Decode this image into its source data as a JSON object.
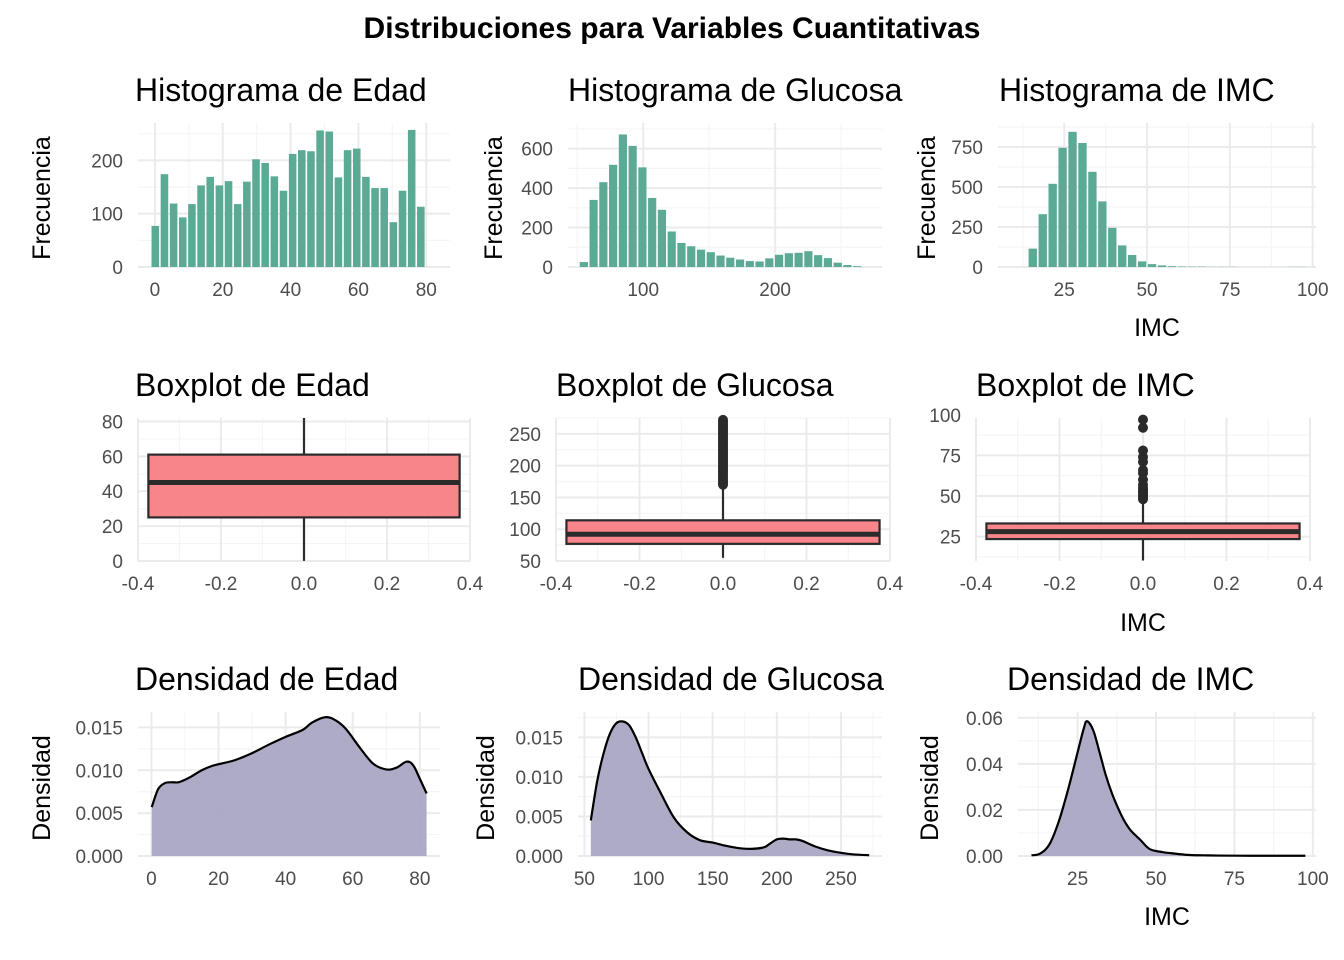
{
  "title": "Distribuciones para Variables Cuantitativas",
  "colors": {
    "histogram_fill": "#5AAA95",
    "box_fill": "#F8858A",
    "box_stroke": "#2B2B2B",
    "density_fill": "#A9A7C3",
    "density_line": "#000000",
    "grid_major": "#EBEBEB",
    "grid_minor": "#F5F5F5",
    "tick_text": "#4D4D4D"
  },
  "chart_data": [
    {
      "type": "bar",
      "title": "Histograma de Edad",
      "xlabel": "",
      "ylabel": "Frecuencia",
      "xlim": [
        -5,
        87
      ],
      "ylim": [
        0,
        270
      ],
      "xticks": [
        0,
        20,
        40,
        60,
        80
      ],
      "yticks": [
        0,
        100,
        200
      ],
      "bin_width": 2.7,
      "centers": [
        0.1,
        2.8,
        5.5,
        8.2,
        10.9,
        13.6,
        16.3,
        19.0,
        21.7,
        24.4,
        27.1,
        29.8,
        32.5,
        35.2,
        37.9,
        40.6,
        43.3,
        46.0,
        48.7,
        51.4,
        54.1,
        56.8,
        59.5,
        62.2,
        64.9,
        67.6,
        70.3,
        73.0,
        75.7,
        78.4,
        81.1
      ],
      "values": [
        77,
        174,
        119,
        93,
        118,
        153,
        169,
        153,
        161,
        118,
        160,
        202,
        195,
        170,
        143,
        212,
        219,
        217,
        256,
        254,
        168,
        219,
        222,
        169,
        148,
        148,
        84,
        143,
        257,
        113,
        0
      ]
    },
    {
      "type": "bar",
      "title": "Histograma de Glucosa",
      "xlabel": "",
      "ylabel": "Frecuencia",
      "xlim": [
        43,
        281
      ],
      "ylim": [
        0,
        730
      ],
      "xticks": [
        100,
        200
      ],
      "yticks": [
        0,
        200,
        400,
        600
      ],
      "bin_width": 7.4,
      "centers": [
        55,
        62.4,
        69.8,
        77.2,
        84.6,
        92,
        99.4,
        106.8,
        114.2,
        121.6,
        129,
        136.4,
        143.8,
        151.2,
        158.6,
        166,
        173.4,
        180.8,
        188.2,
        195.6,
        203,
        210.4,
        217.8,
        225.2,
        232.6,
        240,
        247.4,
        254.8,
        262.2
      ],
      "values": [
        25,
        340,
        430,
        518,
        672,
        614,
        505,
        350,
        290,
        180,
        122,
        105,
        88,
        75,
        58,
        47,
        38,
        30,
        28,
        44,
        62,
        70,
        72,
        80,
        60,
        45,
        22,
        10,
        4
      ]
    },
    {
      "type": "bar",
      "title": "Histograma de IMC",
      "xlabel": "IMC",
      "ylabel": "Frecuencia",
      "xlim": [
        5,
        101
      ],
      "ylim": [
        0,
        900
      ],
      "xticks": [
        25,
        50,
        75,
        100
      ],
      "yticks": [
        0,
        250,
        500,
        750
      ],
      "bin_width": 3.0,
      "centers": [
        15.5,
        18.5,
        21.5,
        24.5,
        27.5,
        30.5,
        33.5,
        36.5,
        39.5,
        42.5,
        45.5,
        48.5,
        51.5,
        54.5,
        57.5,
        60.5,
        63.5,
        66.5,
        69.5,
        72.5,
        75.5,
        78.5,
        81.5,
        84.5,
        87.5,
        90.5,
        93.5,
        96.5
      ],
      "values": [
        115,
        330,
        520,
        745,
        845,
        775,
        595,
        410,
        245,
        135,
        75,
        35,
        18,
        10,
        5,
        3,
        2,
        2,
        1,
        1,
        1,
        0,
        0,
        0,
        0,
        0,
        1,
        1
      ]
    },
    {
      "type": "boxplot",
      "title": "Boxplot de Edad",
      "xlabel": "",
      "ylabel": "",
      "xlim": [
        -0.4,
        0.4
      ],
      "ylim": [
        0,
        82
      ],
      "xticks": [
        -0.4,
        -0.2,
        0.0,
        0.2,
        0.4
      ],
      "xtick_labels": [
        "-0.4",
        "-0.2",
        "0.0",
        "0.2",
        "0.4"
      ],
      "yticks": [
        0,
        20,
        40,
        60,
        80
      ],
      "box": {
        "xmin": -0.375,
        "xmax": 0.375,
        "lower_whisker": 0.08,
        "q1": 25,
        "median": 45,
        "q3": 61,
        "upper_whisker": 82
      },
      "outliers": []
    },
    {
      "type": "boxplot",
      "title": "Boxplot de Glucosa",
      "xlabel": "",
      "ylabel": "",
      "xlim": [
        -0.4,
        0.4
      ],
      "ylim": [
        50,
        275
      ],
      "xticks": [
        -0.4,
        -0.2,
        0.0,
        0.2,
        0.4
      ],
      "xtick_labels": [
        "-0.4",
        "-0.2",
        "0.0",
        "0.2",
        "0.4"
      ],
      "yticks": [
        50,
        100,
        150,
        200,
        250
      ],
      "box": {
        "xmin": -0.375,
        "xmax": 0.375,
        "lower_whisker": 55,
        "q1": 77,
        "median": 92,
        "q3": 114,
        "upper_whisker": 169
      },
      "outliers": [
        170,
        173,
        176,
        179,
        182,
        185,
        188,
        191,
        194,
        197,
        200,
        203,
        206,
        209,
        212,
        215,
        218,
        221,
        224,
        227,
        230,
        233,
        236,
        239,
        242,
        245,
        248,
        251,
        254,
        257,
        260,
        263,
        266,
        269,
        272
      ]
    },
    {
      "type": "boxplot",
      "title": "Boxplot de IMC",
      "xlabel": "IMC",
      "ylabel": "",
      "xlim": [
        -0.4,
        0.4
      ],
      "ylim": [
        10,
        98
      ],
      "xticks": [
        -0.4,
        -0.2,
        0.0,
        0.2,
        0.4
      ],
      "xtick_labels": [
        "-0.4",
        "-0.2",
        "0.0",
        "0.2",
        "0.4"
      ],
      "yticks": [
        25,
        50,
        75,
        100
      ],
      "box": {
        "xmin": -0.375,
        "xmax": 0.375,
        "lower_whisker": 10.3,
        "q1": 23.5,
        "median": 28.1,
        "q3": 33.1,
        "upper_whisker": 47.5
      },
      "outliers": [
        48,
        49,
        50,
        51,
        52,
        53,
        54,
        55,
        57,
        60,
        64,
        66,
        71,
        74,
        78,
        92,
        97
      ]
    },
    {
      "type": "area",
      "title": "Densidad de Edad",
      "xlabel": "",
      "ylabel": "Densidad",
      "xlim": [
        -4,
        86
      ],
      "ylim": [
        0,
        0.0168
      ],
      "xticks": [
        0,
        20,
        40,
        60,
        80
      ],
      "yticks": [
        0,
        0.005,
        0.01,
        0.015
      ],
      "ytick_labels": [
        "0.000",
        "0.005",
        "0.010",
        "0.015"
      ],
      "x": [
        0.1,
        2,
        4,
        6,
        8,
        10,
        12,
        15,
        18,
        21,
        25,
        30,
        35,
        40,
        45,
        48,
        52,
        55,
        58,
        62,
        66,
        70,
        73,
        76,
        78,
        80,
        82
      ],
      "y": [
        0.0057,
        0.0078,
        0.0085,
        0.0086,
        0.0086,
        0.0089,
        0.0093,
        0.01,
        0.0105,
        0.0108,
        0.0112,
        0.012,
        0.013,
        0.0139,
        0.0147,
        0.0156,
        0.0162,
        0.0158,
        0.0148,
        0.0127,
        0.0108,
        0.0101,
        0.0103,
        0.011,
        0.0106,
        0.009,
        0.0073
      ]
    },
    {
      "type": "area",
      "title": "Densidad de Glucosa",
      "xlabel": "",
      "ylabel": "Densidad",
      "xlim": [
        45,
        282
      ],
      "ylim": [
        0,
        0.0182
      ],
      "xticks": [
        50,
        100,
        150,
        200,
        250
      ],
      "yticks": [
        0,
        0.005,
        0.01,
        0.015
      ],
      "ytick_labels": [
        "0.000",
        "0.005",
        "0.010",
        "0.015"
      ],
      "x": [
        55,
        60,
        65,
        70,
        75,
        80,
        85,
        90,
        95,
        100,
        110,
        120,
        130,
        140,
        150,
        160,
        170,
        180,
        190,
        195,
        200,
        205,
        210,
        215,
        220,
        230,
        240,
        250,
        260,
        272
      ],
      "y": [
        0.0045,
        0.0095,
        0.013,
        0.0155,
        0.0168,
        0.017,
        0.0165,
        0.015,
        0.013,
        0.011,
        0.0078,
        0.0048,
        0.003,
        0.002,
        0.0017,
        0.0013,
        0.001,
        0.0009,
        0.0011,
        0.0016,
        0.0021,
        0.0022,
        0.0021,
        0.0021,
        0.0019,
        0.0012,
        0.0007,
        0.0004,
        0.0002,
        0.0001
      ]
    },
    {
      "type": "area",
      "title": "Densidad de IMC",
      "xlabel": "IMC",
      "ylabel": "Densidad",
      "xlim": [
        6,
        101
      ],
      "ylim": [
        0,
        0.0625
      ],
      "xticks": [
        25,
        50,
        75,
        100
      ],
      "yticks": [
        0,
        0.02,
        0.04,
        0.06
      ],
      "ytick_labels": [
        "0.00",
        "0.02",
        "0.04",
        "0.06"
      ],
      "x": [
        10.3,
        13,
        16,
        19,
        22,
        25,
        27,
        28,
        30,
        32,
        34,
        36,
        38,
        40,
        42,
        45,
        48,
        52,
        55,
        60,
        65,
        70,
        80,
        90,
        97.6
      ],
      "y": [
        0.0003,
        0.001,
        0.005,
        0.015,
        0.029,
        0.045,
        0.0555,
        0.0585,
        0.0545,
        0.045,
        0.035,
        0.027,
        0.0205,
        0.015,
        0.011,
        0.007,
        0.003,
        0.0017,
        0.0012,
        0.0005,
        0.0003,
        0.0002,
        0.0001,
        0.0001,
        0.0001
      ]
    }
  ]
}
